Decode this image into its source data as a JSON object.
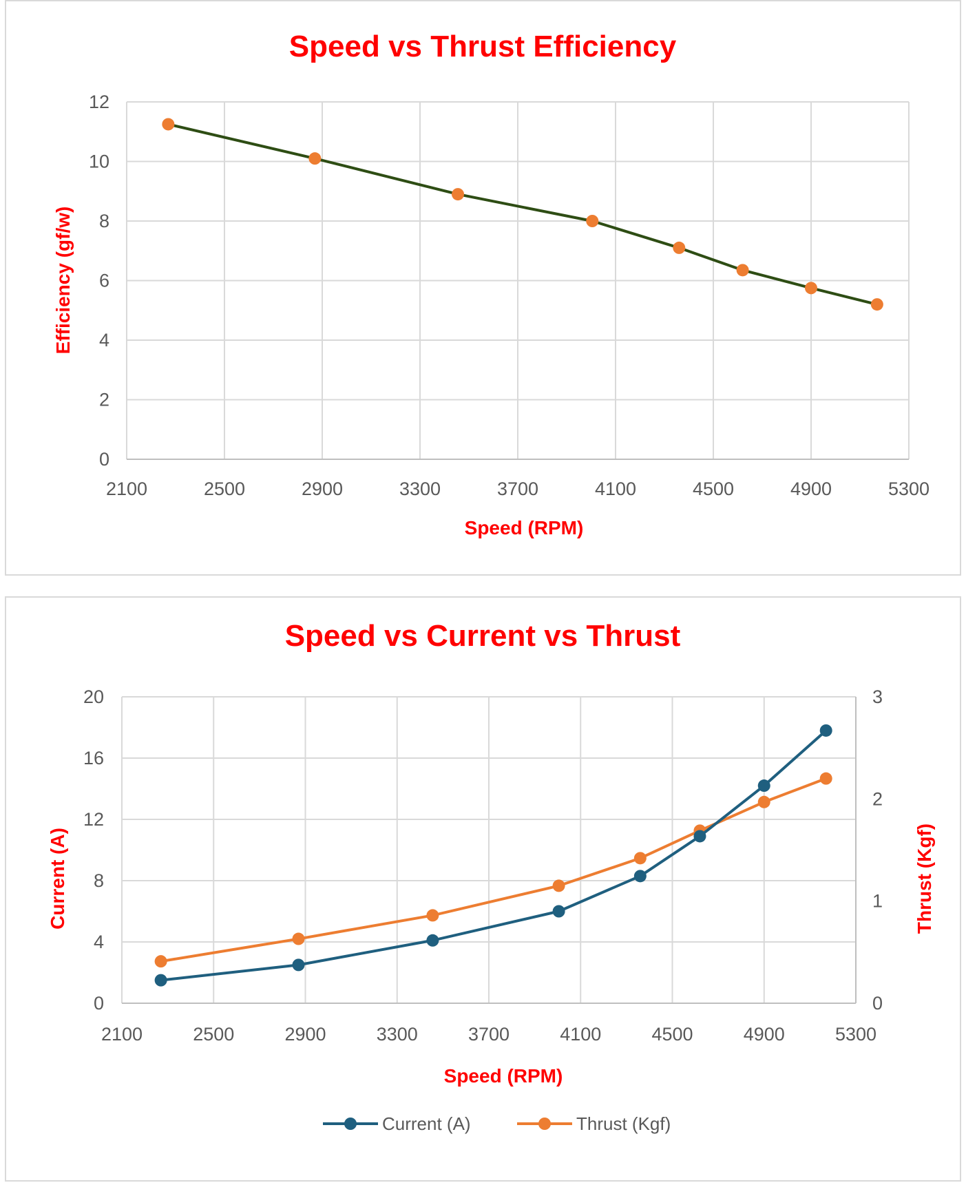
{
  "chart_data": [
    {
      "type": "line",
      "title": "Speed vs Thrust Efficiency",
      "xlabel": "Speed (RPM)",
      "ylabel": "Efficiency (gf/w)",
      "xlim": [
        2100,
        5300
      ],
      "ylim": [
        0,
        12
      ],
      "xticks": [
        2100,
        2500,
        2900,
        3300,
        3700,
        4100,
        4500,
        4900,
        5300
      ],
      "yticks": [
        0,
        2,
        4,
        6,
        8,
        10,
        12
      ],
      "grid": true,
      "legend": "none",
      "x": [
        2270,
        2870,
        3455,
        4005,
        4360,
        4620,
        4900,
        5170
      ],
      "series": [
        {
          "name": "Efficiency (gf/w)",
          "line_color": "#2e4d14",
          "marker_color": "#ed7d31",
          "values": [
            11.25,
            10.1,
            8.9,
            8.0,
            7.1,
            6.35,
            5.75,
            5.2
          ]
        }
      ]
    },
    {
      "type": "line",
      "title": "Speed vs Current vs Thrust",
      "xlabel": "Speed (RPM)",
      "ylabel": "Current (A)",
      "y2label": "Thrust (Kgf)",
      "xlim": [
        2100,
        5300
      ],
      "ylim": [
        0,
        20
      ],
      "y2lim": [
        0,
        3
      ],
      "xticks": [
        2100,
        2500,
        2900,
        3300,
        3700,
        4100,
        4500,
        4900,
        5300
      ],
      "yticks": [
        0,
        4,
        8,
        12,
        16,
        20
      ],
      "y2ticks": [
        0,
        1,
        2,
        3
      ],
      "grid": true,
      "legend": "bottom",
      "x": [
        2270,
        2870,
        3455,
        4005,
        4360,
        4620,
        4900,
        5170
      ],
      "series": [
        {
          "name": "Current (A)",
          "axis": "left",
          "color": "#1f5f7f",
          "values": [
            1.5,
            2.5,
            4.1,
            6.0,
            8.3,
            10.9,
            14.2,
            17.8
          ]
        },
        {
          "name": "Thrust (Kgf)",
          "axis": "right",
          "color": "#ed7d31",
          "values": [
            0.41,
            0.63,
            0.86,
            1.15,
            1.42,
            1.69,
            1.97,
            2.2
          ]
        }
      ]
    }
  ]
}
